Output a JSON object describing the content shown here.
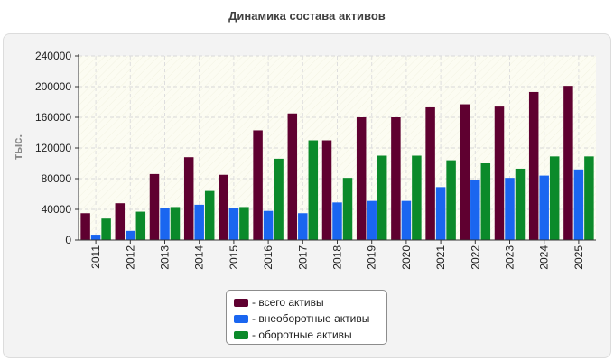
{
  "title": "Динамика состава активов",
  "chart_data": {
    "type": "bar",
    "title": "Динамика состава активов",
    "ylabel": "тыс.",
    "xlabel": "",
    "ylim": [
      0,
      240000
    ],
    "yticks": [
      0,
      40000,
      80000,
      120000,
      160000,
      200000,
      240000
    ],
    "grid": true,
    "legend_position": "bottom-center",
    "categories": [
      "2011",
      "2012",
      "2013",
      "2014",
      "2015",
      "2016",
      "2017",
      "2018",
      "2019",
      "2020",
      "2021",
      "2022",
      "2023",
      "2024",
      "2025"
    ],
    "series": [
      {
        "name": "- всего активы",
        "color": "#5f0030",
        "values": [
          35000,
          48000,
          86000,
          108000,
          85000,
          143000,
          165000,
          130000,
          160000,
          160000,
          173000,
          177000,
          174000,
          193000,
          201000
        ]
      },
      {
        "name": "- внеоборотные активы",
        "color": "#1a66f0",
        "values": [
          7000,
          12000,
          42000,
          46000,
          42000,
          38000,
          35000,
          49000,
          51000,
          51000,
          69000,
          78000,
          81000,
          84000,
          92000
        ]
      },
      {
        "name": "- оборотные активы",
        "color": "#0b8a2a",
        "values": [
          28000,
          37000,
          43000,
          64000,
          43000,
          106000,
          130000,
          81000,
          110000,
          110000,
          104000,
          100000,
          93000,
          109000,
          109000
        ]
      }
    ]
  }
}
